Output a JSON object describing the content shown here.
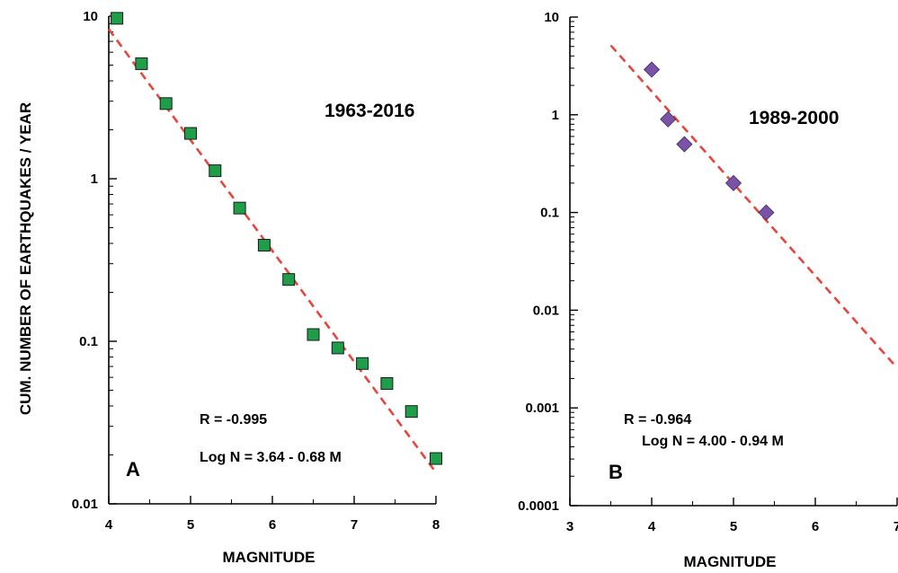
{
  "ylabel": "CUM. NUMBER OF EARTHQUAKES / YEAR",
  "colors": {
    "fit_line": "#e8453c",
    "panel_a_marker": "#1f9e4a",
    "panel_b_marker": "#7a52a8"
  },
  "chart_data": [
    {
      "type": "scatter",
      "panel": "A",
      "period": "1963-2016",
      "xlabel": "MAGNITUDE",
      "ylabel": "CUM. NUMBER OF EARTHQUAKES / YEAR",
      "xlim": [
        4,
        8
      ],
      "ylim": [
        0.01,
        10
      ],
      "yscale": "log",
      "xticks": [
        "4",
        "5",
        "6",
        "7",
        "8"
      ],
      "yticks": [
        "0.01",
        "0.1",
        "1",
        "10"
      ],
      "marker": "square",
      "points": [
        {
          "x": 4.1,
          "y": 9.7
        },
        {
          "x": 4.4,
          "y": 5.1
        },
        {
          "x": 4.7,
          "y": 2.9
        },
        {
          "x": 5.0,
          "y": 1.9
        },
        {
          "x": 5.3,
          "y": 1.12
        },
        {
          "x": 5.6,
          "y": 0.66
        },
        {
          "x": 5.9,
          "y": 0.39
        },
        {
          "x": 6.2,
          "y": 0.24
        },
        {
          "x": 6.5,
          "y": 0.11
        },
        {
          "x": 6.8,
          "y": 0.091
        },
        {
          "x": 7.1,
          "y": 0.073
        },
        {
          "x": 7.4,
          "y": 0.055
        },
        {
          "x": 7.7,
          "y": 0.037
        },
        {
          "x": 8.0,
          "y": 0.019
        }
      ],
      "fit": {
        "a": 3.64,
        "b": 0.68,
        "x_range": [
          4,
          8
        ]
      },
      "r_text": "R = -0.995",
      "equation_text": "Log N = 3.64 - 0.68 M",
      "grid": false
    },
    {
      "type": "scatter",
      "panel": "B",
      "period": "1989-2000",
      "xlabel": "MAGNITUDE",
      "xlim": [
        3,
        7
      ],
      "ylim": [
        0.0001,
        10
      ],
      "yscale": "log",
      "xticks": [
        "3",
        "4",
        "5",
        "6",
        "7"
      ],
      "yticks": [
        "0.0001",
        "0.001",
        "0.01",
        "0.1",
        "1",
        "10"
      ],
      "marker": "diamond",
      "points": [
        {
          "x": 4.0,
          "y": 2.9
        },
        {
          "x": 4.2,
          "y": 0.9
        },
        {
          "x": 4.4,
          "y": 0.5
        },
        {
          "x": 5.0,
          "y": 0.2
        },
        {
          "x": 5.4,
          "y": 0.1
        }
      ],
      "fit": {
        "a": 4.0,
        "b": 0.94,
        "x_range": [
          3.5,
          7
        ]
      },
      "r_text": "R = -0.964",
      "equation_text": "Log N = 4.00 - 0.94 M",
      "grid": false
    }
  ]
}
